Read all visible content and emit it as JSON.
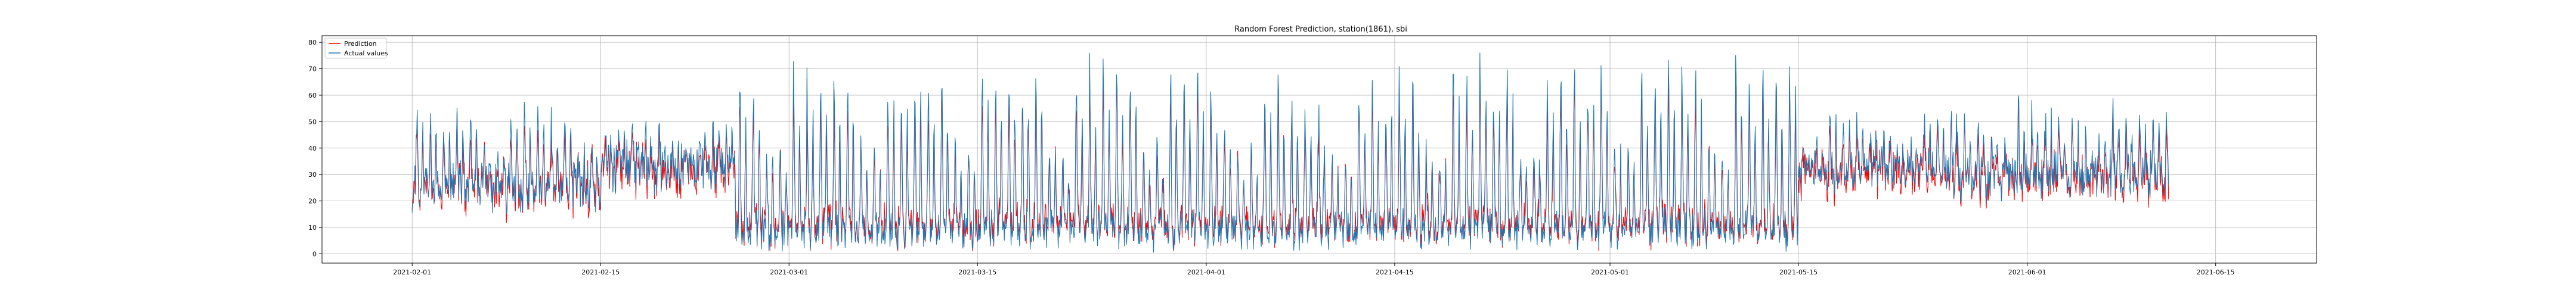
{
  "chart_data": {
    "type": "line",
    "title": "Random Forest Prediction, station(1861), sbi",
    "xlabel": "",
    "ylabel": "",
    "x_ticks": [
      "2021-02-01",
      "2021-02-15",
      "2021-03-01",
      "2021-03-15",
      "2021-04-01",
      "2021-04-15",
      "2021-05-01",
      "2021-05-15",
      "2021-06-01",
      "2021-06-15"
    ],
    "x_tick_days": [
      31,
      45,
      59,
      73,
      90,
      104,
      120,
      134,
      151,
      165
    ],
    "y_ticks": [
      "0",
      "10",
      "20",
      "30",
      "40",
      "50",
      "60",
      "70",
      "80"
    ],
    "xlim_days": [
      24.3,
      172.5
    ],
    "ylim": [
      -3.5,
      82.5
    ],
    "x_range": [
      "2021-02-01",
      "2021-06-10"
    ],
    "grid": true,
    "legend_position": "top-left",
    "series": [
      {
        "name": "Prediction",
        "color": "#ff0000",
        "values": []
      },
      {
        "name": "Actual values",
        "color": "#1f77b4",
        "values": []
      }
    ]
  }
}
